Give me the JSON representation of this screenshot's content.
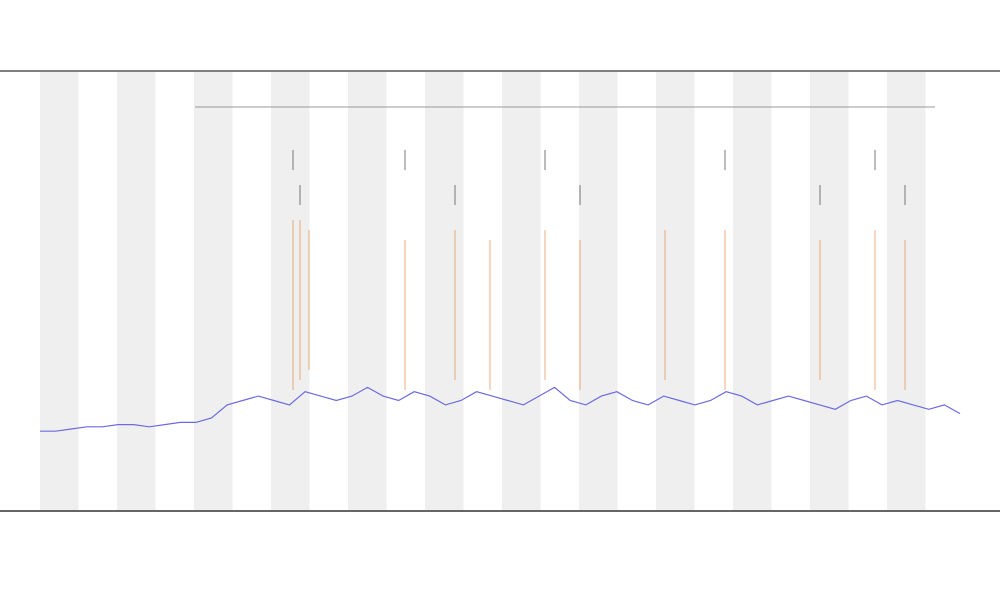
{
  "chart_data": {
    "type": "line",
    "series": [
      {
        "color": "#6b6be0",
        "values": [
          18,
          18,
          18.5,
          19,
          19,
          19.5,
          19.5,
          19,
          19.5,
          20,
          20,
          21,
          24,
          25,
          26,
          25,
          24,
          27,
          26,
          25,
          26,
          28,
          26,
          25,
          27,
          26,
          24,
          25,
          27,
          26,
          25,
          24,
          26,
          28,
          25,
          24,
          26,
          27,
          25,
          24,
          26,
          25,
          24,
          25,
          27,
          26,
          24,
          25,
          26,
          25,
          24,
          23,
          25,
          26,
          24,
          25,
          24,
          23,
          24,
          22
        ]
      }
    ],
    "ylim": [
      0,
      100
    ]
  }
}
